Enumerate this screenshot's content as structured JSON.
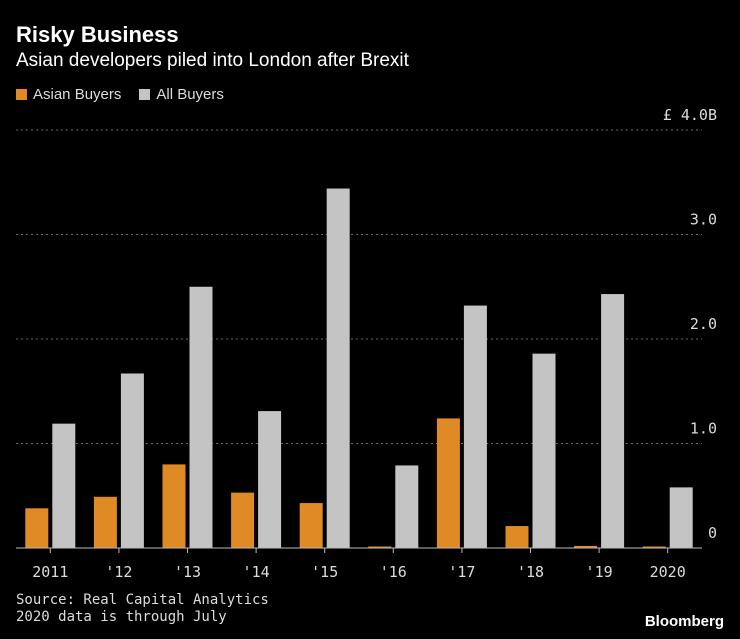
{
  "chart_data": {
    "type": "bar",
    "title": "Risky Business",
    "subtitle": "Asian developers piled into London after Brexit",
    "categories": [
      "2011",
      "'12",
      "'13",
      "'14",
      "'15",
      "'16",
      "'17",
      "'18",
      "'19",
      "2020"
    ],
    "series": [
      {
        "name": "Asian Buyers",
        "color": "#e08a25",
        "values": [
          0.38,
          0.49,
          0.8,
          0.53,
          0.43,
          0.01,
          1.24,
          0.21,
          0.02,
          0.01
        ]
      },
      {
        "name": "All Buyers",
        "color": "#c4c4c4",
        "values": [
          1.19,
          1.67,
          2.5,
          1.31,
          3.44,
          0.79,
          2.32,
          1.86,
          2.43,
          0.58
        ]
      }
    ],
    "ylim": [
      0,
      4.0
    ],
    "yticks": [
      {
        "value": 0,
        "label": "0"
      },
      {
        "value": 1,
        "label": "1.0"
      },
      {
        "value": 2,
        "label": "2.0"
      },
      {
        "value": 3,
        "label": "3.0"
      },
      {
        "value": 4,
        "label": "£ 4.0B"
      }
    ],
    "grid": true,
    "legend_position": "top-left"
  },
  "footer": {
    "source": "Source: Real Capital Analytics",
    "note": "2020 data is through July",
    "brand": "Bloomberg"
  },
  "colors": {
    "background": "#000000",
    "grid": "#6a6a6a",
    "text": "#dcdcdc"
  }
}
